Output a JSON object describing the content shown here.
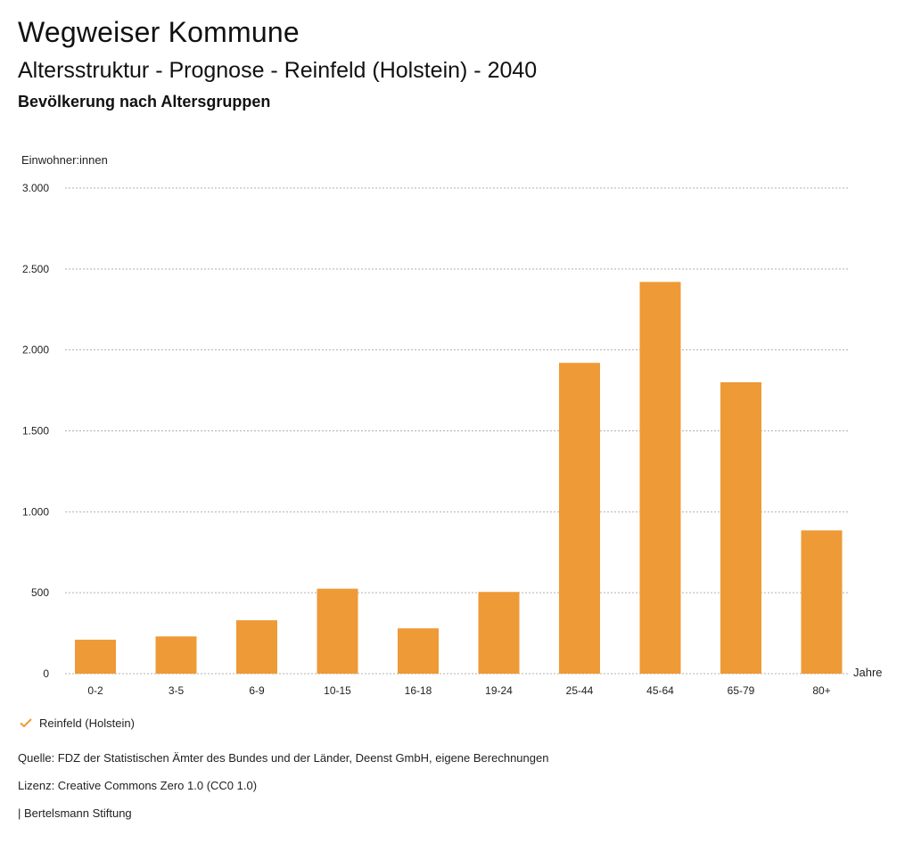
{
  "header": {
    "title": "Wegweiser Kommune",
    "subtitle": "Altersstruktur - Prognose - Reinfeld (Holstein) - 2040",
    "section": "Bevölkerung nach Altersgruppen"
  },
  "chart_data": {
    "type": "bar",
    "ylabel": "Einwohner:innen",
    "xlabel": "Jahre",
    "ylim": [
      0,
      3000
    ],
    "yticks": [
      0,
      500,
      1000,
      1500,
      2000,
      2500,
      3000
    ],
    "ytick_labels": [
      "0",
      "500",
      "1.000",
      "1.500",
      "2.000",
      "2.500",
      "3.000"
    ],
    "categories": [
      "0-2",
      "3-5",
      "6-9",
      "10-15",
      "16-18",
      "19-24",
      "25-44",
      "45-64",
      "65-79",
      "80+"
    ],
    "series": [
      {
        "name": "Reinfeld (Holstein)",
        "color": "#ee9a37",
        "values": [
          210,
          230,
          330,
          525,
          280,
          505,
          1920,
          2420,
          1800,
          885
        ]
      }
    ],
    "grid": true,
    "legend_position": "bottom-left"
  },
  "footer": {
    "source": "Quelle: FDZ der Statistischen Ämter des Bundes und der Länder, Deenst GmbH, eigene Berechnungen",
    "license": "Lizenz: Creative Commons Zero 1.0 (CC0 1.0)",
    "publisher": "| Bertelsmann Stiftung"
  },
  "colors": {
    "bar": "#ee9a37",
    "grid": "#b0b0b0",
    "text": "#111111"
  }
}
